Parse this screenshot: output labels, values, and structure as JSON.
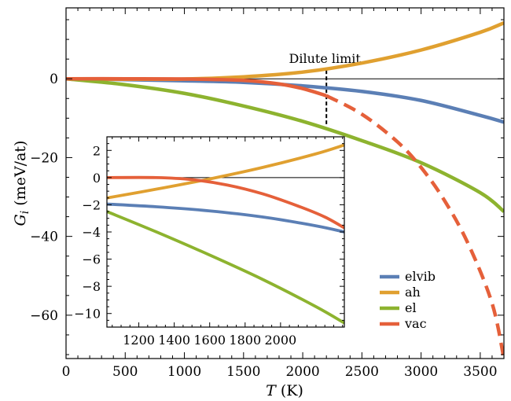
{
  "chart_data": [
    {
      "type": "line",
      "xlabel": "T (K)",
      "ylabel": "G_i (meV/at)",
      "xlabel_parts": {
        "var": "T",
        "unit": " (K)"
      },
      "ylabel_parts": {
        "var": "G",
        "sub": "i",
        "unit": " (meV/at)"
      },
      "xlim": [
        0,
        3700
      ],
      "ylim": [
        -71,
        18
      ],
      "xticks": [
        0,
        500,
        1000,
        1500,
        2000,
        2500,
        3000,
        3500
      ],
      "yticks": [
        0,
        -20,
        -40,
        -60
      ],
      "zero_line": true,
      "annotation": {
        "text": "Dilute limit",
        "x": 2200,
        "y_top": 2.2,
        "y_bottom": -11.5,
        "style": "dashed"
      },
      "legend": {
        "position": "bottom-right",
        "entries": [
          "elvib",
          "ah",
          "el",
          "vac"
        ]
      },
      "series": [
        {
          "name": "elvib",
          "color": "#5b7fb5",
          "style": "solid",
          "x": [
            0,
            500,
            1000,
            1500,
            2000,
            2500,
            3000,
            3500,
            3700
          ],
          "y": [
            0,
            -0.2,
            -0.5,
            -0.9,
            -1.8,
            -3.2,
            -5.5,
            -9.3,
            -11.0
          ]
        },
        {
          "name": "ah",
          "color": "#e0a030",
          "style": "solid",
          "x": [
            0,
            500,
            1000,
            1500,
            2000,
            2500,
            3000,
            3500,
            3700
          ],
          "y": [
            0,
            -0.1,
            -0.05,
            0.5,
            1.7,
            4.0,
            7.3,
            11.8,
            14.2
          ]
        },
        {
          "name": "el",
          "color": "#8db32f",
          "style": "solid",
          "x": [
            0,
            500,
            1000,
            1500,
            2000,
            2500,
            3000,
            3500,
            3700
          ],
          "y": [
            0,
            -1.5,
            -3.7,
            -6.9,
            -10.8,
            -15.7,
            -21.3,
            -28.9,
            -33.7
          ]
        },
        {
          "name": "vac",
          "color": "#e5603a",
          "style": "solid",
          "x": [
            0,
            500,
            1000,
            1500,
            1800,
            2000,
            2200
          ],
          "y": [
            0,
            0,
            -0.05,
            -0.4,
            -1.3,
            -2.5,
            -4.3
          ]
        },
        {
          "name": "vac",
          "color": "#e5603a",
          "style": "dashed",
          "x": [
            2200,
            2500,
            2800,
            3000,
            3200,
            3400,
            3600,
            3700
          ],
          "y": [
            -4.3,
            -9.0,
            -16.0,
            -22.5,
            -31.0,
            -42.0,
            -57.0,
            -71.0
          ]
        }
      ]
    },
    {
      "type": "line",
      "inset": true,
      "xlim": [
        1020,
        2360
      ],
      "ylim": [
        -11,
        3
      ],
      "xticks": [
        1200,
        1400,
        1600,
        1800,
        2000
      ],
      "yticks": [
        2,
        0,
        -2,
        -4,
        -6,
        -8,
        -10
      ],
      "zero_line": true,
      "series": [
        {
          "name": "elvib",
          "color": "#5b7fb5",
          "x": [
            1020,
            1300,
            1600,
            1900,
            2200,
            2360
          ],
          "y": [
            -1.95,
            -2.15,
            -2.45,
            -2.9,
            -3.55,
            -4.0
          ]
        },
        {
          "name": "ah",
          "color": "#e0a030",
          "x": [
            1020,
            1300,
            1600,
            1900,
            2200,
            2360
          ],
          "y": [
            -1.5,
            -0.85,
            -0.1,
            0.75,
            1.75,
            2.4
          ]
        },
        {
          "name": "el",
          "color": "#8db32f",
          "x": [
            1020,
            1300,
            1600,
            1900,
            2200,
            2360
          ],
          "y": [
            -2.5,
            -4.0,
            -5.7,
            -7.5,
            -9.5,
            -10.7
          ]
        },
        {
          "name": "vac",
          "color": "#e5603a",
          "x": [
            1020,
            1300,
            1500,
            1700,
            1900,
            2100,
            2250,
            2360
          ],
          "y": [
            0,
            0,
            -0.15,
            -0.55,
            -1.2,
            -2.1,
            -2.9,
            -3.7
          ]
        }
      ]
    }
  ]
}
